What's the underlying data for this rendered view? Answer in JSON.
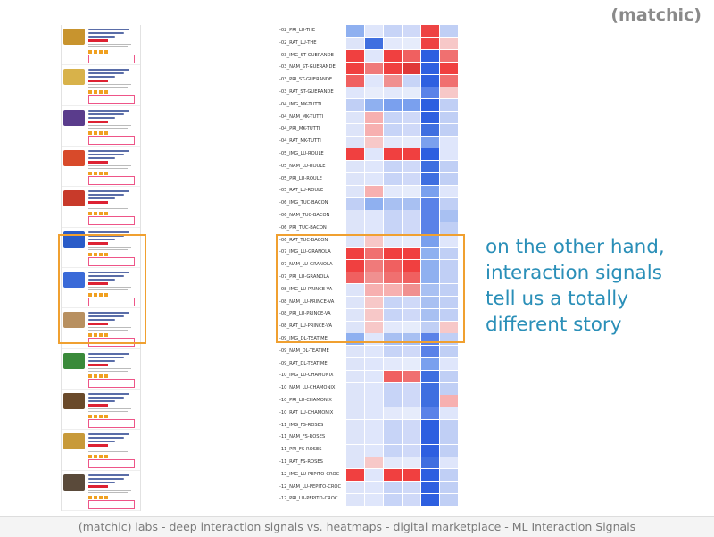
{
  "brand": "(matchic)",
  "annotation": [
    "on the other hand,",
    "interaction signals",
    "tell us a totally",
    "different story"
  ],
  "footer": "(matchic) labs  -  deep interaction signals vs. heatmaps  -  digital marketplace  -  ML Interaction Signals",
  "heatmap_rows": [
    {
      "label": "-02_PRI_LU-THE",
      "cells": [
        "#8fb0f0",
        "#dfe6fb",
        "#c7d4f7",
        "#cfd9f8",
        "#ee4444",
        "#c0cff5"
      ]
    },
    {
      "label": "-02_RAT_LU-THE",
      "cells": [
        "#dde4f9",
        "#3f6fe0",
        "#e3e9fb",
        "#e6ecfb",
        "#ee4444",
        "#f7c8c8"
      ]
    },
    {
      "label": "-03_IMG_ST-GUERANDE",
      "cells": [
        "#f04040",
        "#dfe6fb",
        "#f04040",
        "#f06060",
        "#2d5fe0",
        "#f07070"
      ]
    },
    {
      "label": "-03_NAM_ST-GUERANDE",
      "cells": [
        "#f04040",
        "#f07a7a",
        "#f04040",
        "#e03838",
        "#2d5fe0",
        "#f04040"
      ]
    },
    {
      "label": "-03_PRI_ST-GUERANDE",
      "cells": [
        "#f06060",
        "#dfe6fb",
        "#f09090",
        "#c7d4f7",
        "#2d5fe0",
        "#f07070"
      ]
    },
    {
      "label": "-03_RAT_ST-GUERANDE",
      "cells": [
        "#dfe6fb",
        "#e8edfb",
        "#e3e9fb",
        "#e6ecfb",
        "#5a82e8",
        "#f7c8c8"
      ]
    },
    {
      "label": "-04_IMG_MK-TUTTI",
      "cells": [
        "#c0cff5",
        "#8fb0f0",
        "#7aa0ee",
        "#7aa0ee",
        "#2d5fe0",
        "#c0cff5"
      ]
    },
    {
      "label": "-04_NAM_MK-TUTTI",
      "cells": [
        "#dde4f9",
        "#f7b0b0",
        "#c7d4f7",
        "#cfd9f8",
        "#2d5fe0",
        "#c0cff5"
      ]
    },
    {
      "label": "-04_PRI_MK-TUTTI",
      "cells": [
        "#dde4f9",
        "#f7b0b0",
        "#c7d4f7",
        "#cfd9f8",
        "#3f6fe0",
        "#c0cff5"
      ]
    },
    {
      "label": "-04_RAT_MK-TUTTI",
      "cells": [
        "#dde4f9",
        "#f7c8c8",
        "#e3e9fb",
        "#e6ecfb",
        "#7aa0ee",
        "#dfe6fb"
      ]
    },
    {
      "label": "-05_IMG_LU-ROULE",
      "cells": [
        "#f04040",
        "#dfe6fb",
        "#f04040",
        "#f04040",
        "#2d5fe0",
        "#dfe6fb"
      ]
    },
    {
      "label": "-05_NAM_LU-ROULE",
      "cells": [
        "#dde4f9",
        "#dfe6fb",
        "#c7d4f7",
        "#cfd9f8",
        "#3f6fe0",
        "#c0cff5"
      ]
    },
    {
      "label": "-05_PRI_LU-ROULE",
      "cells": [
        "#dde4f9",
        "#dfe6fb",
        "#c7d4f7",
        "#cfd9f8",
        "#3f6fe0",
        "#c0cff5"
      ]
    },
    {
      "label": "-05_RAT_LU-ROULE",
      "cells": [
        "#dde4f9",
        "#f7b0b0",
        "#e3e9fb",
        "#e6ecfb",
        "#7aa0ee",
        "#dfe6fb"
      ]
    },
    {
      "label": "-06_IMG_TUC-BACON",
      "cells": [
        "#c0cff5",
        "#8fb0f0",
        "#a8c0f2",
        "#a8c0f2",
        "#5a82e8",
        "#c0cff5"
      ]
    },
    {
      "label": "-06_NAM_TUC-BACON",
      "cells": [
        "#dde4f9",
        "#dfe6fb",
        "#c7d4f7",
        "#cfd9f8",
        "#5a82e8",
        "#a8c0f2"
      ]
    },
    {
      "label": "-06_PRI_TUC-BACON",
      "cells": [
        "#dde4f9",
        "#dfe6fb",
        "#c7d4f7",
        "#cfd9f8",
        "#5a82e8",
        "#c0cff5"
      ]
    },
    {
      "label": "-06_RAT_TUC-BACON",
      "cells": [
        "#dde4f9",
        "#f7c8c8",
        "#e3e9fb",
        "#e6ecfb",
        "#7aa0ee",
        "#dfe6fb"
      ]
    },
    {
      "label": "-07_IMG_LU-GRANOLA",
      "cells": [
        "#f04040",
        "#f07070",
        "#f04040",
        "#f04040",
        "#8fb0f0",
        "#c0cff5"
      ]
    },
    {
      "label": "-07_NAM_LU-GRANOLA",
      "cells": [
        "#f04040",
        "#f07a7a",
        "#f06060",
        "#f04040",
        "#8fb0f0",
        "#c0cff5"
      ]
    },
    {
      "label": "-07_PRI_LU-GRANOLA",
      "cells": [
        "#f06060",
        "#f09090",
        "#f07070",
        "#f06060",
        "#8fb0f0",
        "#c0cff5"
      ]
    },
    {
      "label": "-08_IMG_LU-PRINCE-VA",
      "cells": [
        "#dde4f9",
        "#f7b0b0",
        "#f7b0b0",
        "#f09090",
        "#a8c0f2",
        "#c0cff5"
      ]
    },
    {
      "label": "-08_NAM_LU-PRINCE-VA",
      "cells": [
        "#dde4f9",
        "#f7c8c8",
        "#c7d4f7",
        "#cfd9f8",
        "#a8c0f2",
        "#c0cff5"
      ]
    },
    {
      "label": "-08_PRI_LU-PRINCE-VA",
      "cells": [
        "#dde4f9",
        "#f7c8c8",
        "#c7d4f7",
        "#cfd9f8",
        "#a8c0f2",
        "#c0cff5"
      ]
    },
    {
      "label": "-08_RAT_LU-PRINCE-VA",
      "cells": [
        "#dde4f9",
        "#f7c8c8",
        "#e3e9fb",
        "#e6ecfb",
        "#c0cff5",
        "#f7c8c8"
      ]
    },
    {
      "label": "-09_IMG_DL-TEATIME",
      "cells": [
        "#8fb0f0",
        "#dfe6fb",
        "#a8c0f2",
        "#a8c0f2",
        "#5a82e8",
        "#c0cff5"
      ]
    },
    {
      "label": "-09_NAM_DL-TEATIME",
      "cells": [
        "#dde4f9",
        "#dfe6fb",
        "#c7d4f7",
        "#cfd9f8",
        "#5a82e8",
        "#c0cff5"
      ]
    },
    {
      "label": "-09_RAT_DL-TEATIME",
      "cells": [
        "#dde4f9",
        "#dfe6fb",
        "#e3e9fb",
        "#e6ecfb",
        "#7aa0ee",
        "#dfe6fb"
      ]
    },
    {
      "label": "-10_IMG_LU-CHAMONIX",
      "cells": [
        "#dde4f9",
        "#dfe6fb",
        "#f06060",
        "#f07070",
        "#3f6fe0",
        "#c0cff5"
      ]
    },
    {
      "label": "-10_NAM_LU-CHAMONIX",
      "cells": [
        "#dde4f9",
        "#dfe6fb",
        "#c7d4f7",
        "#cfd9f8",
        "#3f6fe0",
        "#c0cff5"
      ]
    },
    {
      "label": "-10_PRI_LU-CHAMONIX",
      "cells": [
        "#dde4f9",
        "#dfe6fb",
        "#c7d4f7",
        "#cfd9f8",
        "#3f6fe0",
        "#f7b0b0"
      ]
    },
    {
      "label": "-10_RAT_LU-CHAMONIX",
      "cells": [
        "#dde4f9",
        "#dfe6fb",
        "#e3e9fb",
        "#e6ecfb",
        "#5a82e8",
        "#dfe6fb"
      ]
    },
    {
      "label": "-11_IMG_FS-ROSES",
      "cells": [
        "#dde4f9",
        "#dfe6fb",
        "#c7d4f7",
        "#cfd9f8",
        "#2d5fe0",
        "#c0cff5"
      ]
    },
    {
      "label": "-11_NAM_FS-ROSES",
      "cells": [
        "#dde4f9",
        "#dfe6fb",
        "#c7d4f7",
        "#cfd9f8",
        "#2d5fe0",
        "#c0cff5"
      ]
    },
    {
      "label": "-11_PRI_FS-ROSES",
      "cells": [
        "#dde4f9",
        "#dfe6fb",
        "#c7d4f7",
        "#cfd9f8",
        "#2d5fe0",
        "#c0cff5"
      ]
    },
    {
      "label": "-11_RAT_FS-ROSES",
      "cells": [
        "#dde4f9",
        "#f7c8c8",
        "#e3e9fb",
        "#e6ecfb",
        "#3f6fe0",
        "#dfe6fb"
      ]
    },
    {
      "label": "-12_IMG_LU-PEPITO-CROC",
      "cells": [
        "#f04040",
        "#dfe6fb",
        "#f04040",
        "#f04040",
        "#2d5fe0",
        "#c0cff5"
      ]
    },
    {
      "label": "-12_NAM_LU-PEPITO-CROC",
      "cells": [
        "#dde4f9",
        "#dfe6fb",
        "#c7d4f7",
        "#cfd9f8",
        "#2d5fe0",
        "#c0cff5"
      ]
    },
    {
      "label": "-12_PRI_LU-PEPITO-CROC",
      "cells": [
        "#dde4f9",
        "#dfe6fb",
        "#c7d4f7",
        "#cfd9f8",
        "#2d5fe0",
        "#c0cff5"
      ]
    }
  ],
  "products": [
    {
      "thumb": "#c8942e"
    },
    {
      "thumb": "#d8b24a"
    },
    {
      "thumb": "#5a3c8c"
    },
    {
      "thumb": "#d84a2a"
    },
    {
      "thumb": "#c83a2a"
    },
    {
      "thumb": "#2a5cc8"
    },
    {
      "thumb": "#3a6ad8"
    },
    {
      "thumb": "#b89060"
    },
    {
      "thumb": "#3a8a3a"
    },
    {
      "thumb": "#6a4a2a"
    },
    {
      "thumb": "#c89a3a"
    },
    {
      "thumb": "#5a4a3a"
    }
  ],
  "colors": {
    "highlight": "#f0a030",
    "annotation": "#2a8fb8",
    "brand": "#8a8a8a"
  }
}
